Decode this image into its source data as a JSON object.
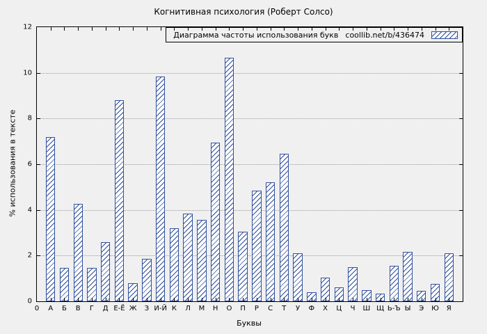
{
  "chart_data": {
    "type": "bar",
    "title": "Когнитивная психология (Роберт Солсо)",
    "xlabel": "Буквы",
    "ylabel": "% использования в тексте",
    "ylim": [
      0,
      12
    ],
    "yticks": [
      0,
      2,
      4,
      6,
      8,
      10,
      12
    ],
    "origin_tick_label": "0",
    "grid": true,
    "legend_position": "top-right-inside",
    "bar_fill": "#fcfcfc",
    "hatch_color": "#30509c",
    "categories": [
      "А",
      "Б",
      "В",
      "Г",
      "Д",
      "Е-Ё",
      "Ж",
      "З",
      "И-Й",
      "К",
      "Л",
      "М",
      "Н",
      "О",
      "П",
      "Р",
      "С",
      "Т",
      "У",
      "Ф",
      "Х",
      "Ц",
      "Ч",
      "Ш",
      "Щ",
      "Ь-Ъ",
      "Ы",
      "Э",
      "Ю",
      "Я"
    ],
    "values": [
      7.2,
      1.45,
      4.25,
      1.45,
      2.6,
      8.8,
      0.8,
      1.85,
      9.85,
      3.2,
      3.85,
      3.55,
      6.95,
      10.65,
      3.05,
      4.85,
      5.2,
      6.45,
      2.1,
      0.4,
      1.05,
      0.6,
      1.5,
      0.5,
      0.35,
      1.55,
      2.15,
      0.45,
      0.75,
      2.1
    ]
  },
  "legend": {
    "label": "Диаграмма частоты использования букв",
    "url": "coollib.net/b/436474"
  }
}
